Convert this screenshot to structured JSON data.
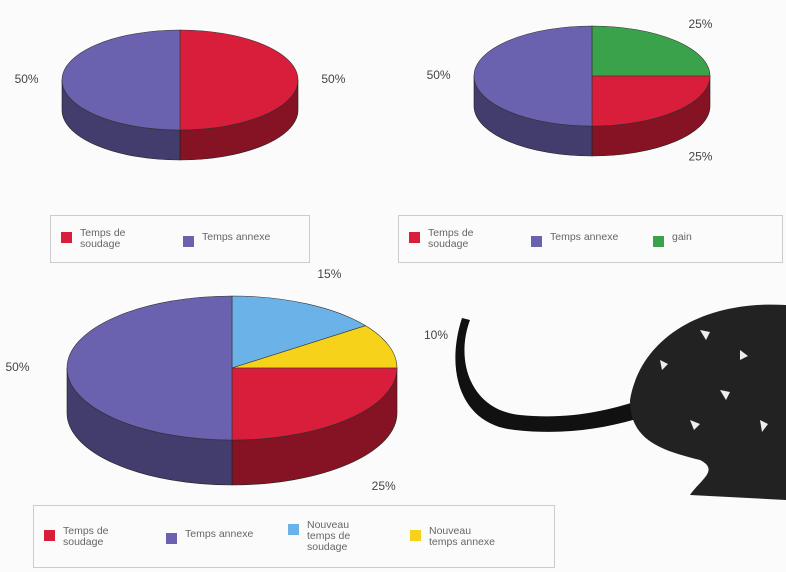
{
  "chart_data": [
    {
      "type": "pie",
      "categories": [
        "Temps de soudage",
        "Temps annexe"
      ],
      "values": [
        50,
        50
      ],
      "value_labels": [
        "50%",
        "50%"
      ],
      "colors": [
        "#d81e3a",
        "#6a62ae"
      ]
    },
    {
      "type": "pie",
      "categories": [
        "Temps de soudage",
        "Temps annexe",
        "gain"
      ],
      "values": [
        25,
        50,
        25
      ],
      "value_labels": [
        "25%",
        "50%",
        "25%"
      ],
      "colors": [
        "#d81e3a",
        "#6a62ae",
        "#3aa24a"
      ]
    },
    {
      "type": "pie",
      "categories": [
        "Temps de soudage",
        "Temps annexe",
        "Nouveau temps de soudage",
        "Nouveau temps annexe"
      ],
      "values": [
        25,
        50,
        15,
        10
      ],
      "value_labels": [
        "25%",
        "50%",
        "15%",
        "10%"
      ],
      "colors": [
        "#d81e3a",
        "#6a62ae",
        "#6bb2e8",
        "#f7d21a"
      ]
    }
  ]
}
